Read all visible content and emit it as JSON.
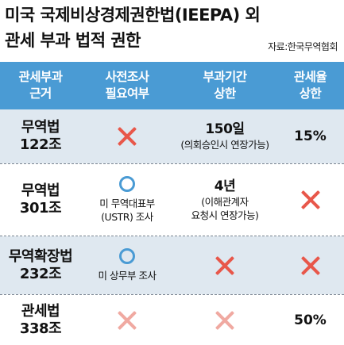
{
  "header": {
    "title_line1": "미국 국제비상경제권한법(IEEPA) 외",
    "title_line2": "관세 부과 법적 권한",
    "source": "자료:한국무역협회"
  },
  "colors": {
    "header_bg": "#4a9bd4",
    "circle": "#4a9bd4",
    "x_mark": "#e8574a",
    "alt_row_bg": "#dfe8f0"
  },
  "table": {
    "columns": [
      {
        "line1": "관세부과",
        "line2": "근거"
      },
      {
        "line1": "사전조사",
        "line2": "필요여부"
      },
      {
        "line1": "부과기간",
        "line2": "상한"
      },
      {
        "line1": "관세율",
        "line2": "상한"
      }
    ],
    "rows": [
      {
        "law_name": "무역법",
        "law_article": "122조",
        "investigation": {
          "mark": "x-icon",
          "note": ""
        },
        "period": {
          "main": "150일",
          "note1": "(의회승인시 연장가능)",
          "note2": "",
          "mark": ""
        },
        "rate": {
          "value": "15%",
          "mark": ""
        }
      },
      {
        "law_name": "무역법",
        "law_article": "301조",
        "investigation": {
          "mark": "circle-icon",
          "note1": "미 무역대표부",
          "note2": "(USTR) 조사"
        },
        "period": {
          "main": "4년",
          "note1": "(이해관계자",
          "note2": "요청시 연장가능)",
          "mark": ""
        },
        "rate": {
          "value": "",
          "mark": "x-icon"
        }
      },
      {
        "law_name": "무역확장법",
        "law_article": "232조",
        "investigation": {
          "mark": "circle-icon",
          "note1": "미 상무부 조사",
          "note2": ""
        },
        "period": {
          "main": "",
          "note1": "",
          "note2": "",
          "mark": "x-icon"
        },
        "rate": {
          "value": "",
          "mark": "x-icon"
        }
      },
      {
        "law_name": "관세법",
        "law_article": "338조",
        "investigation": {
          "mark": "x-icon-faded",
          "note": ""
        },
        "period": {
          "main": "",
          "note1": "",
          "note2": "",
          "mark": "x-icon-faded"
        },
        "rate": {
          "value": "50%",
          "mark": ""
        }
      }
    ]
  }
}
